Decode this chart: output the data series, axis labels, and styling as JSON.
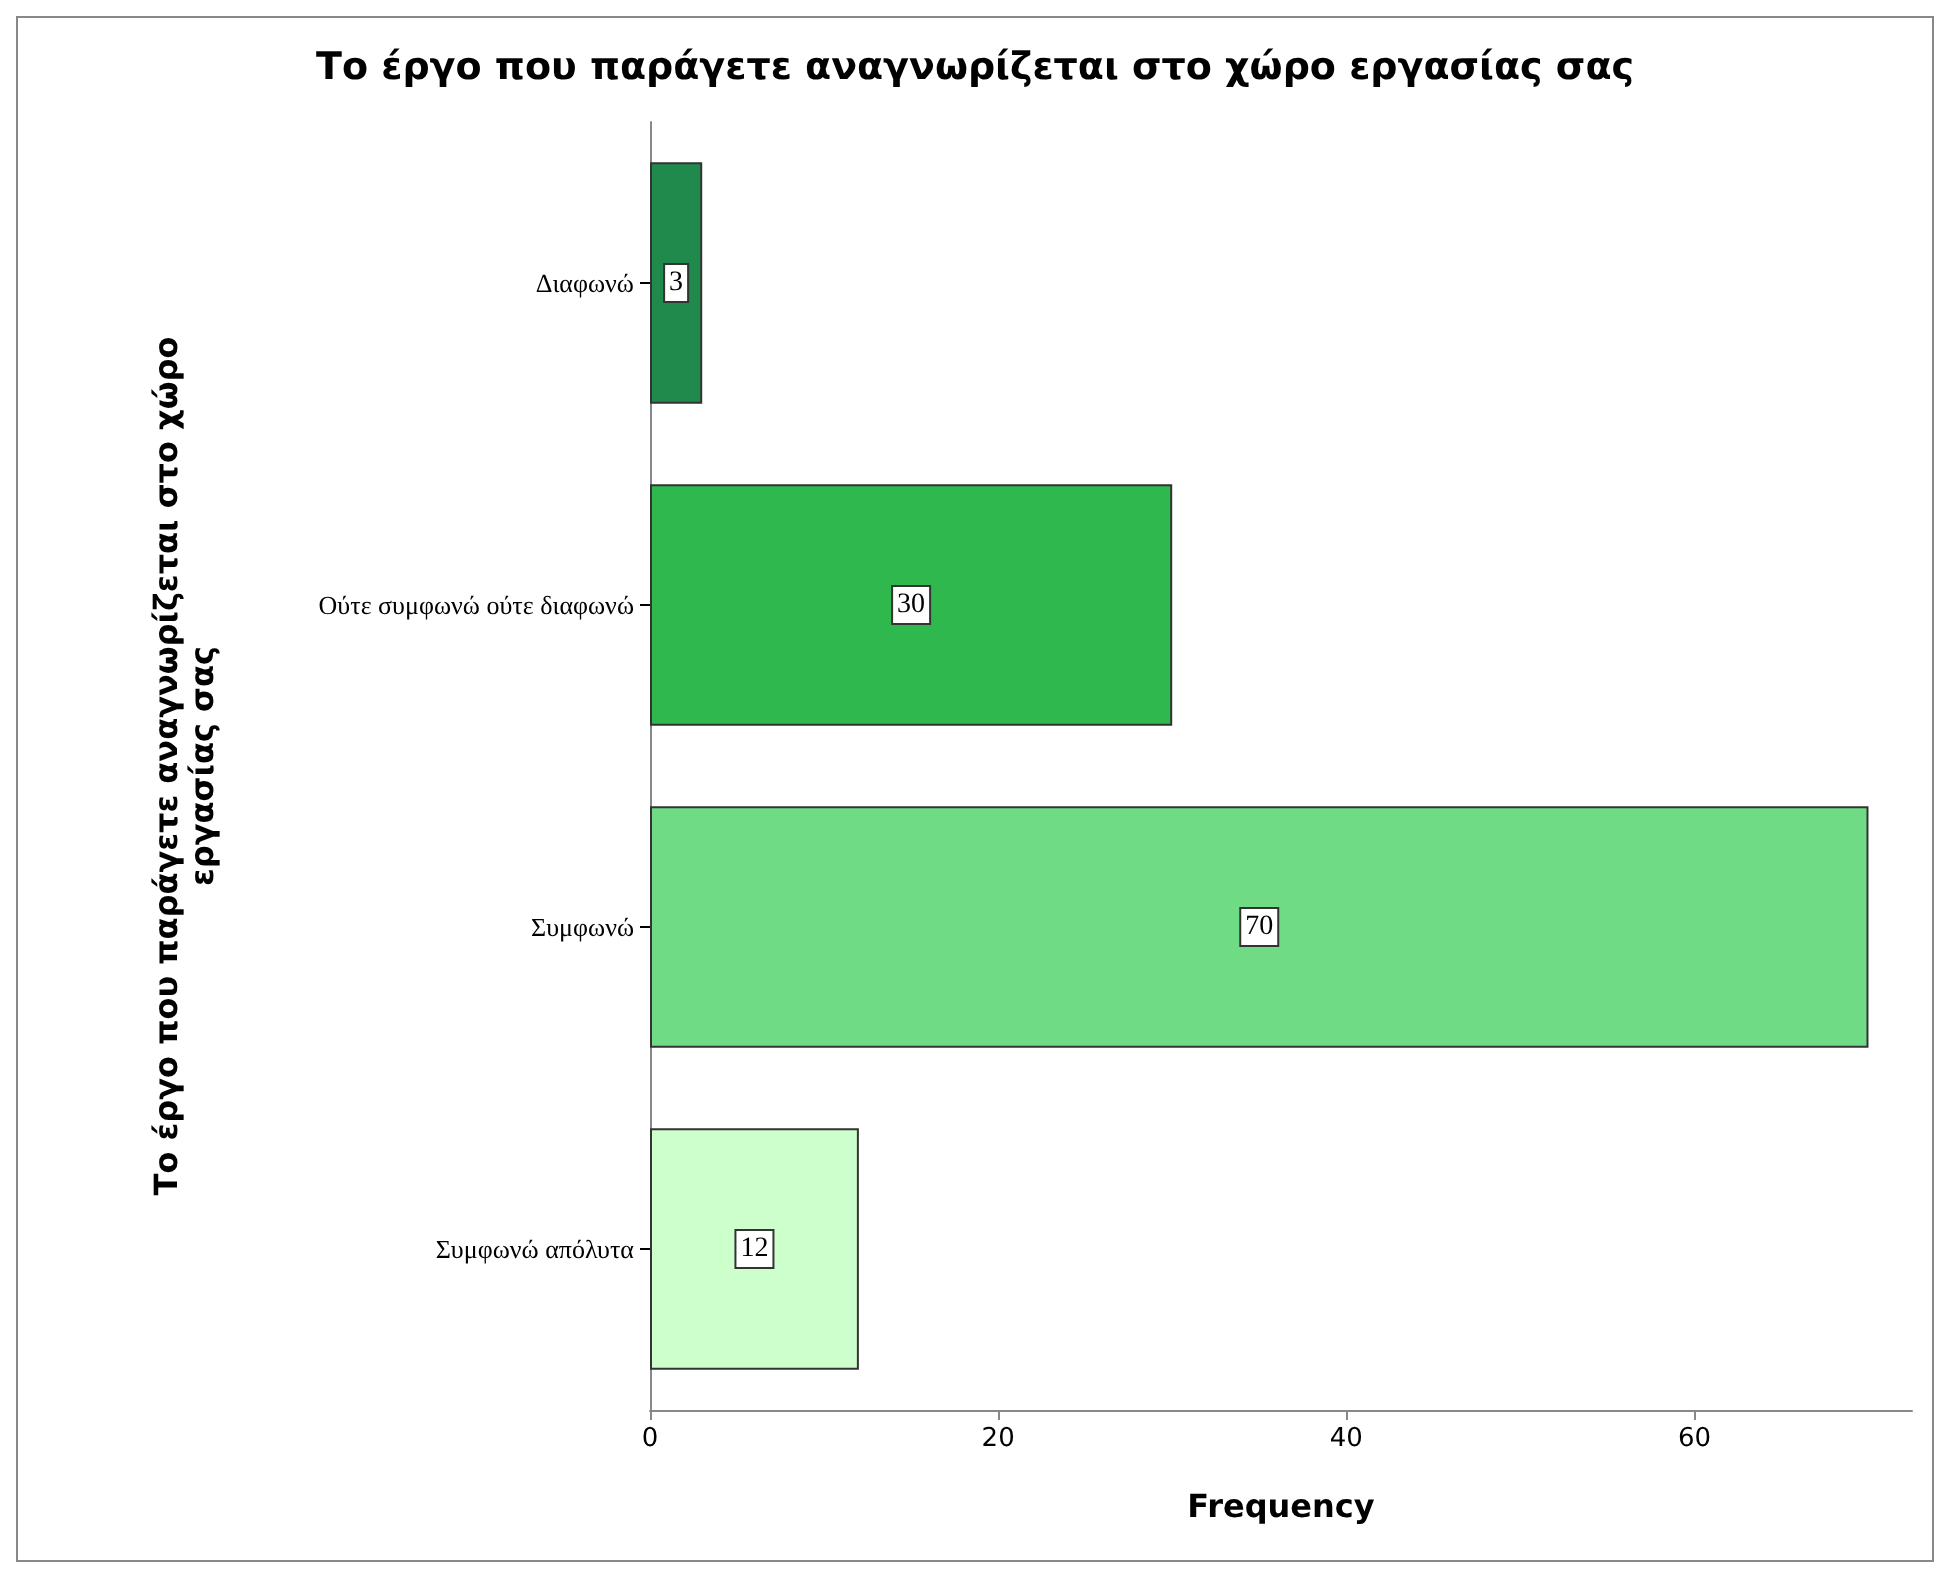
{
  "chart_data": {
    "type": "bar",
    "orientation": "horizontal",
    "title": "Το έργο που παράγετε αναγνωρίζεται στο χώρο εργασίας σας",
    "xlabel": "Frequency",
    "ylabel": "Το έργο που παράγετε αναγνωρίζεται στο χώρο εργασίας σας",
    "categories": [
      "Διαφωνώ",
      "Ούτε συμφωνώ ούτε διαφωνώ",
      "Συμφωνώ",
      "Συμφωνώ απόλυτα"
    ],
    "values": [
      3,
      30,
      70,
      12
    ],
    "colors": [
      "#1f8a4c",
      "#2eb84e",
      "#6fdc85",
      "#ccffcc"
    ],
    "xlim": [
      0,
      72.5
    ],
    "xticks": [
      0,
      20,
      40,
      60
    ],
    "data_labels": true,
    "grid": false
  }
}
